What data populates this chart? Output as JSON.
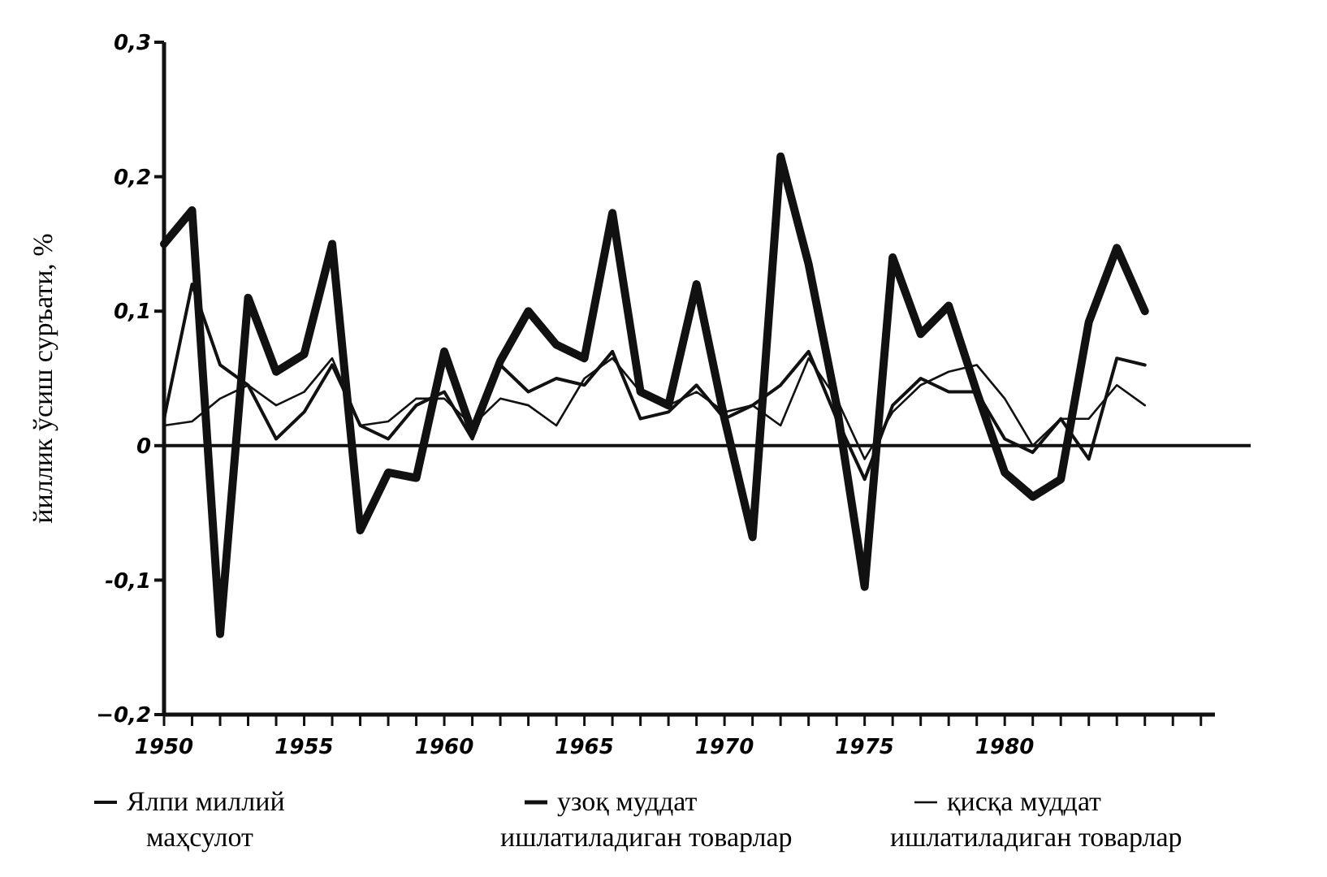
{
  "chart_data": {
    "type": "line",
    "ylabel": "йиллик ўсиш суръати, %",
    "x": [
      1950,
      1951,
      1952,
      1953,
      1954,
      1955,
      1956,
      1957,
      1958,
      1959,
      1960,
      1961,
      1962,
      1963,
      1964,
      1965,
      1966,
      1967,
      1968,
      1969,
      1970,
      1971,
      1972,
      1973,
      1974,
      1975,
      1976,
      1977,
      1978,
      1979,
      1980,
      1981,
      1982,
      1983,
      1984,
      1985
    ],
    "series": [
      {
        "name": "Ялпи миллий маҳсулот",
        "color": "#111111",
        "values": [
          0.02,
          0.12,
          0.06,
          0.045,
          0.005,
          0.025,
          0.06,
          0.015,
          0.005,
          0.03,
          0.04,
          0.005,
          0.06,
          0.04,
          0.05,
          0.045,
          0.07,
          0.02,
          0.025,
          0.045,
          0.02,
          0.03,
          0.045,
          0.07,
          0.02,
          -0.025,
          0.03,
          0.05,
          0.04,
          0.04,
          0.005,
          -0.005,
          0.02,
          -0.01,
          0.065,
          0.06
        ]
      },
      {
        "name": "узоқ муддат ишлатиладиган товарлар",
        "color": "#111111",
        "values": [
          0.15,
          0.175,
          -0.14,
          0.11,
          0.055,
          0.068,
          0.15,
          -0.063,
          -0.02,
          -0.024,
          0.07,
          0.01,
          0.063,
          0.1,
          0.075,
          0.065,
          0.173,
          0.04,
          0.03,
          0.12,
          0.02,
          -0.068,
          0.215,
          0.135,
          0.03,
          -0.105,
          0.14,
          0.083,
          0.104,
          0.04,
          -0.02,
          -0.038,
          -0.025,
          0.092,
          0.147,
          0.1
        ]
      },
      {
        "name": "қисқа муддат ишлатиладиган товарлар",
        "color": "#111111",
        "values": [
          0.015,
          0.018,
          0.035,
          0.045,
          0.03,
          0.04,
          0.065,
          0.015,
          0.018,
          0.035,
          0.035,
          0.015,
          0.035,
          0.03,
          0.015,
          0.05,
          0.065,
          0.04,
          0.03,
          0.04,
          0.025,
          0.03,
          0.015,
          0.065,
          0.035,
          -0.01,
          0.025,
          0.045,
          0.055,
          0.06,
          0.035,
          0.0,
          0.02,
          0.02,
          0.045,
          0.03
        ]
      }
    ],
    "xlim": [
      1950,
      1987.5
    ],
    "xticks": [
      1950,
      {
        "value": 1951,
        "label": null
      },
      {
        "value": 1952,
        "label": null
      },
      {
        "value": 1953,
        "label": null
      },
      {
        "value": 1954,
        "label": null
      },
      1955,
      {
        "value": 1956,
        "label": null
      },
      {
        "value": 1957,
        "label": null
      },
      {
        "value": 1958,
        "label": null
      },
      {
        "value": 1959,
        "label": null
      },
      1960,
      {
        "value": 1961,
        "label": null
      },
      {
        "value": 1962,
        "label": null
      },
      {
        "value": 1963,
        "label": null
      },
      {
        "value": 1964,
        "label": null
      },
      1965,
      {
        "value": 1966,
        "label": null
      },
      {
        "value": 1967,
        "label": null
      },
      {
        "value": 1968,
        "label": null
      },
      {
        "value": 1969,
        "label": null
      },
      1970,
      {
        "value": 1971,
        "label": null
      },
      {
        "value": 1972,
        "label": null
      },
      {
        "value": 1973,
        "label": null
      },
      {
        "value": 1974,
        "label": null
      },
      1975,
      {
        "value": 1976,
        "label": null
      },
      {
        "value": 1977,
        "label": null
      },
      {
        "value": 1978,
        "label": null
      },
      {
        "value": 1979,
        "label": null
      },
      1980,
      {
        "value": 1981,
        "label": null
      },
      {
        "value": 1982,
        "label": null
      },
      {
        "value": 1983,
        "label": null
      },
      {
        "value": 1984,
        "label": null
      },
      {
        "value": 1985,
        "label": null
      },
      {
        "value": 1986,
        "label": null
      },
      {
        "value": 1987,
        "label": null
      }
    ],
    "ylim": [
      -0.2,
      0.3
    ],
    "yticks": [
      {
        "value": -0.2,
        "label": "−0,2"
      },
      {
        "value": -0.1,
        "label": "-0,1"
      },
      {
        "value": 0,
        "label": "0"
      },
      {
        "value": 0.1,
        "label": "0,1"
      },
      {
        "value": 0.2,
        "label": "0,2"
      },
      {
        "value": 0.3,
        "label": "0,3"
      }
    ],
    "ref_lines": [
      {
        "axis": "y",
        "value": 0,
        "color": "#111111"
      }
    ],
    "grid": false,
    "legend": "bottom",
    "marker": "none",
    "line_style": "solid"
  }
}
